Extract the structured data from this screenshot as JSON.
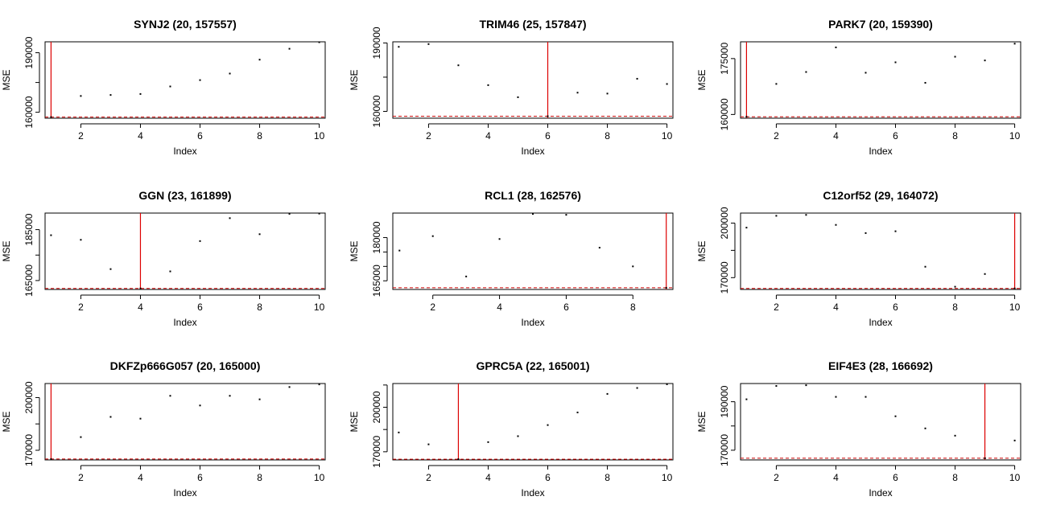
{
  "chart_data": [
    {
      "type": "scatter",
      "title": "SYNJ2 (20, 157557)",
      "xlabel": "Index",
      "ylabel": "MSE",
      "x": [
        1,
        2,
        3,
        4,
        5,
        6,
        7,
        8,
        9,
        10
      ],
      "values": [
        157557,
        168200,
        168700,
        169200,
        173000,
        176200,
        179500,
        186500,
        192000,
        195300
      ],
      "xlim": [
        0.8,
        10.2
      ],
      "ylim": [
        157000,
        195500
      ],
      "xticks": [
        2,
        4,
        6,
        8,
        10
      ],
      "yticks": [
        160000,
        175000,
        190000
      ],
      "ytick_labels": [
        "160000",
        "",
        "190000"
      ],
      "vline_x": 1,
      "hline_y": 157557
    },
    {
      "type": "scatter",
      "title": "TRIM46 (25, 157847)",
      "xlabel": "Index",
      "ylabel": "MSE",
      "x": [
        1,
        2,
        3,
        4,
        5,
        6,
        7,
        8,
        9,
        10
      ],
      "values": [
        188300,
        189500,
        180200,
        171500,
        166200,
        157847,
        168200,
        167800,
        174300,
        172000
      ],
      "xlim": [
        0.8,
        10.2
      ],
      "ylim": [
        157000,
        190500
      ],
      "xticks": [
        2,
        4,
        6,
        8,
        10
      ],
      "yticks": [
        160000,
        175000,
        190000
      ],
      "ytick_labels": [
        "160000",
        "",
        "190000"
      ],
      "vline_x": 6,
      "hline_y": 157847
    },
    {
      "type": "scatter",
      "title": "PARK7 (20, 159390)",
      "xlabel": "Index",
      "ylabel": "MSE",
      "x": [
        1,
        2,
        3,
        4,
        5,
        6,
        7,
        8,
        9,
        10
      ],
      "values": [
        159390,
        168200,
        171400,
        178000,
        171200,
        174000,
        168500,
        175500,
        174500,
        179000
      ],
      "xlim": [
        0.8,
        10.2
      ],
      "ylim": [
        159000,
        179500
      ],
      "xticks": [
        2,
        4,
        6,
        8,
        10
      ],
      "yticks": [
        160000,
        175000
      ],
      "ytick_labels": [
        "160000",
        "175000"
      ],
      "vline_x": 1,
      "hline_y": 159390
    },
    {
      "type": "scatter",
      "title": "GGN (23, 161899)",
      "xlabel": "Index",
      "ylabel": "MSE",
      "x": [
        1,
        2,
        3,
        4,
        5,
        6,
        7,
        8,
        9,
        10
      ],
      "values": [
        182800,
        181000,
        169500,
        161899,
        168600,
        180500,
        189500,
        183200,
        191200,
        191300
      ],
      "xlim": [
        0.8,
        10.2
      ],
      "ylim": [
        161500,
        191500
      ],
      "xticks": [
        2,
        4,
        6,
        8,
        10
      ],
      "yticks": [
        165000,
        175000,
        185000
      ],
      "ytick_labels": [
        "165000",
        "",
        "185000"
      ],
      "vline_x": 4,
      "hline_y": 161899
    },
    {
      "type": "scatter",
      "title": "RCL1 (28, 162576)",
      "xlabel": "Index",
      "ylabel": "MSE",
      "x": [
        1,
        2,
        3,
        4,
        5,
        6,
        7,
        8,
        9
      ],
      "values": [
        175500,
        180500,
        166500,
        179500,
        188200,
        187900,
        176500,
        170000,
        162576
      ],
      "xlim": [
        0.8,
        9.2
      ],
      "ylim": [
        162000,
        188500
      ],
      "xticks": [
        2,
        4,
        6,
        8
      ],
      "yticks": [
        165000,
        170000,
        175000,
        180000
      ],
      "ytick_labels": [
        "165000",
        "",
        "",
        "180000"
      ],
      "vline_x": 9,
      "hline_y": 162576
    },
    {
      "type": "scatter",
      "title": "C12orf52 (29, 164072)",
      "xlabel": "Index",
      "ylabel": "MSE",
      "x": [
        1,
        2,
        3,
        4,
        5,
        6,
        7,
        8,
        9,
        10
      ],
      "values": [
        197500,
        204000,
        204500,
        199000,
        194500,
        195500,
        176000,
        165000,
        172000,
        164072
      ],
      "xlim": [
        0.8,
        10.2
      ],
      "ylim": [
        163500,
        205500
      ],
      "xticks": [
        2,
        4,
        6,
        8,
        10
      ],
      "yticks": [
        170000,
        185000,
        200000
      ],
      "ytick_labels": [
        "170000",
        "",
        "200000"
      ],
      "vline_x": 10,
      "hline_y": 164072
    },
    {
      "type": "scatter",
      "title": "DKFZp666G057 (20, 165000)",
      "xlabel": "Index",
      "ylabel": "MSE",
      "x": [
        1,
        2,
        3,
        4,
        5,
        6,
        7,
        8,
        9,
        10
      ],
      "values": [
        165000,
        177500,
        189000,
        188000,
        201000,
        195500,
        201000,
        199000,
        206000,
        207500
      ],
      "xlim": [
        0.8,
        10.2
      ],
      "ylim": [
        164500,
        208000
      ],
      "xticks": [
        2,
        4,
        6,
        8,
        10
      ],
      "yticks": [
        170000,
        185000,
        200000
      ],
      "ytick_labels": [
        "170000",
        "",
        "200000"
      ],
      "vline_x": 1,
      "hline_y": 165000
    },
    {
      "type": "scatter",
      "title": "GPRC5A (22, 165001)",
      "xlabel": "Index",
      "ylabel": "MSE",
      "x": [
        1,
        2,
        3,
        4,
        5,
        6,
        7,
        8,
        9,
        10
      ],
      "values": [
        183000,
        175000,
        165001,
        176500,
        180500,
        188000,
        196500,
        209000,
        213000,
        215500
      ],
      "xlim": [
        0.8,
        10.2
      ],
      "ylim": [
        164500,
        216000
      ],
      "xticks": [
        2,
        4,
        6,
        8,
        10
      ],
      "yticks": [
        170000,
        185000,
        200000,
        215000
      ],
      "ytick_labels": [
        "170000",
        "",
        "200000",
        ""
      ],
      "vline_x": 3,
      "hline_y": 165001
    },
    {
      "type": "scatter",
      "title": "EIF4E3 (28, 166692)",
      "xlabel": "Index",
      "ylabel": "MSE",
      "x": [
        1,
        2,
        3,
        4,
        5,
        6,
        7,
        8,
        9,
        10
      ],
      "values": [
        191000,
        196500,
        196800,
        192000,
        192000,
        184000,
        179000,
        176000,
        166692,
        174000
      ],
      "xlim": [
        0.8,
        10.2
      ],
      "ylim": [
        166000,
        197500
      ],
      "xticks": [
        2,
        4,
        6,
        8,
        10
      ],
      "yticks": [
        170000,
        180000,
        190000
      ],
      "ytick_labels": [
        "170000",
        "",
        "190000"
      ],
      "vline_x": 9,
      "hline_y": 166692
    }
  ],
  "colors": {
    "vline": "#dd0000",
    "hline": "#cc0000",
    "point": "#000000",
    "axis": "#000000"
  }
}
